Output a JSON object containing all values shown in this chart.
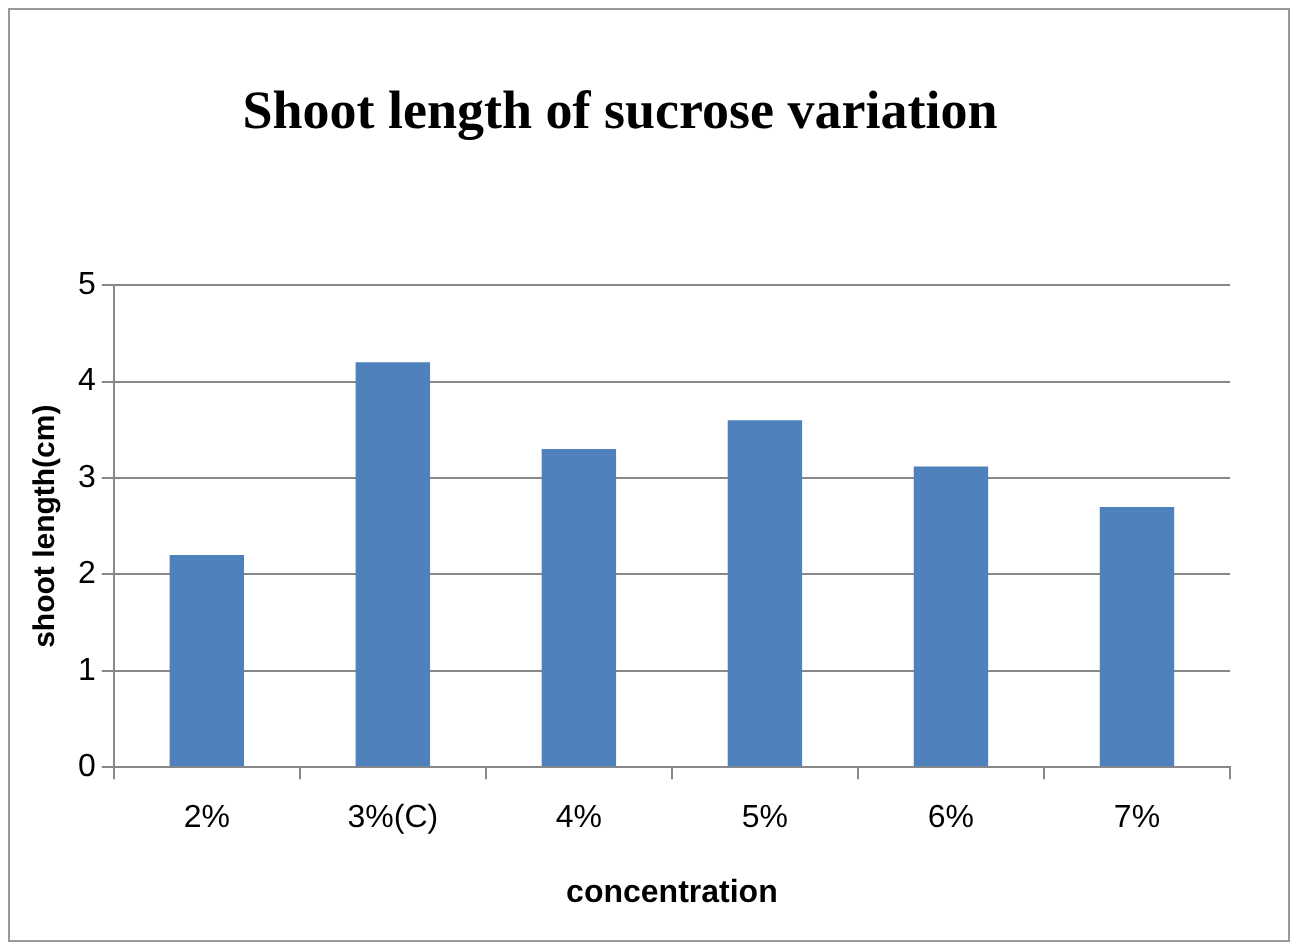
{
  "chart_data": {
    "type": "bar",
    "title": "Shoot length of sucrose variation",
    "xlabel": "concentration",
    "ylabel": "shoot length(cm)",
    "categories": [
      "2%",
      "3%(C)",
      "4%",
      "5%",
      "6%",
      "7%"
    ],
    "values": [
      2.2,
      4.2,
      3.3,
      3.6,
      3.12,
      2.7
    ],
    "color": "#4f81bd",
    "ylim": [
      0,
      5
    ],
    "yticks": [
      0,
      1,
      2,
      3,
      4,
      5
    ],
    "grid": "y"
  }
}
